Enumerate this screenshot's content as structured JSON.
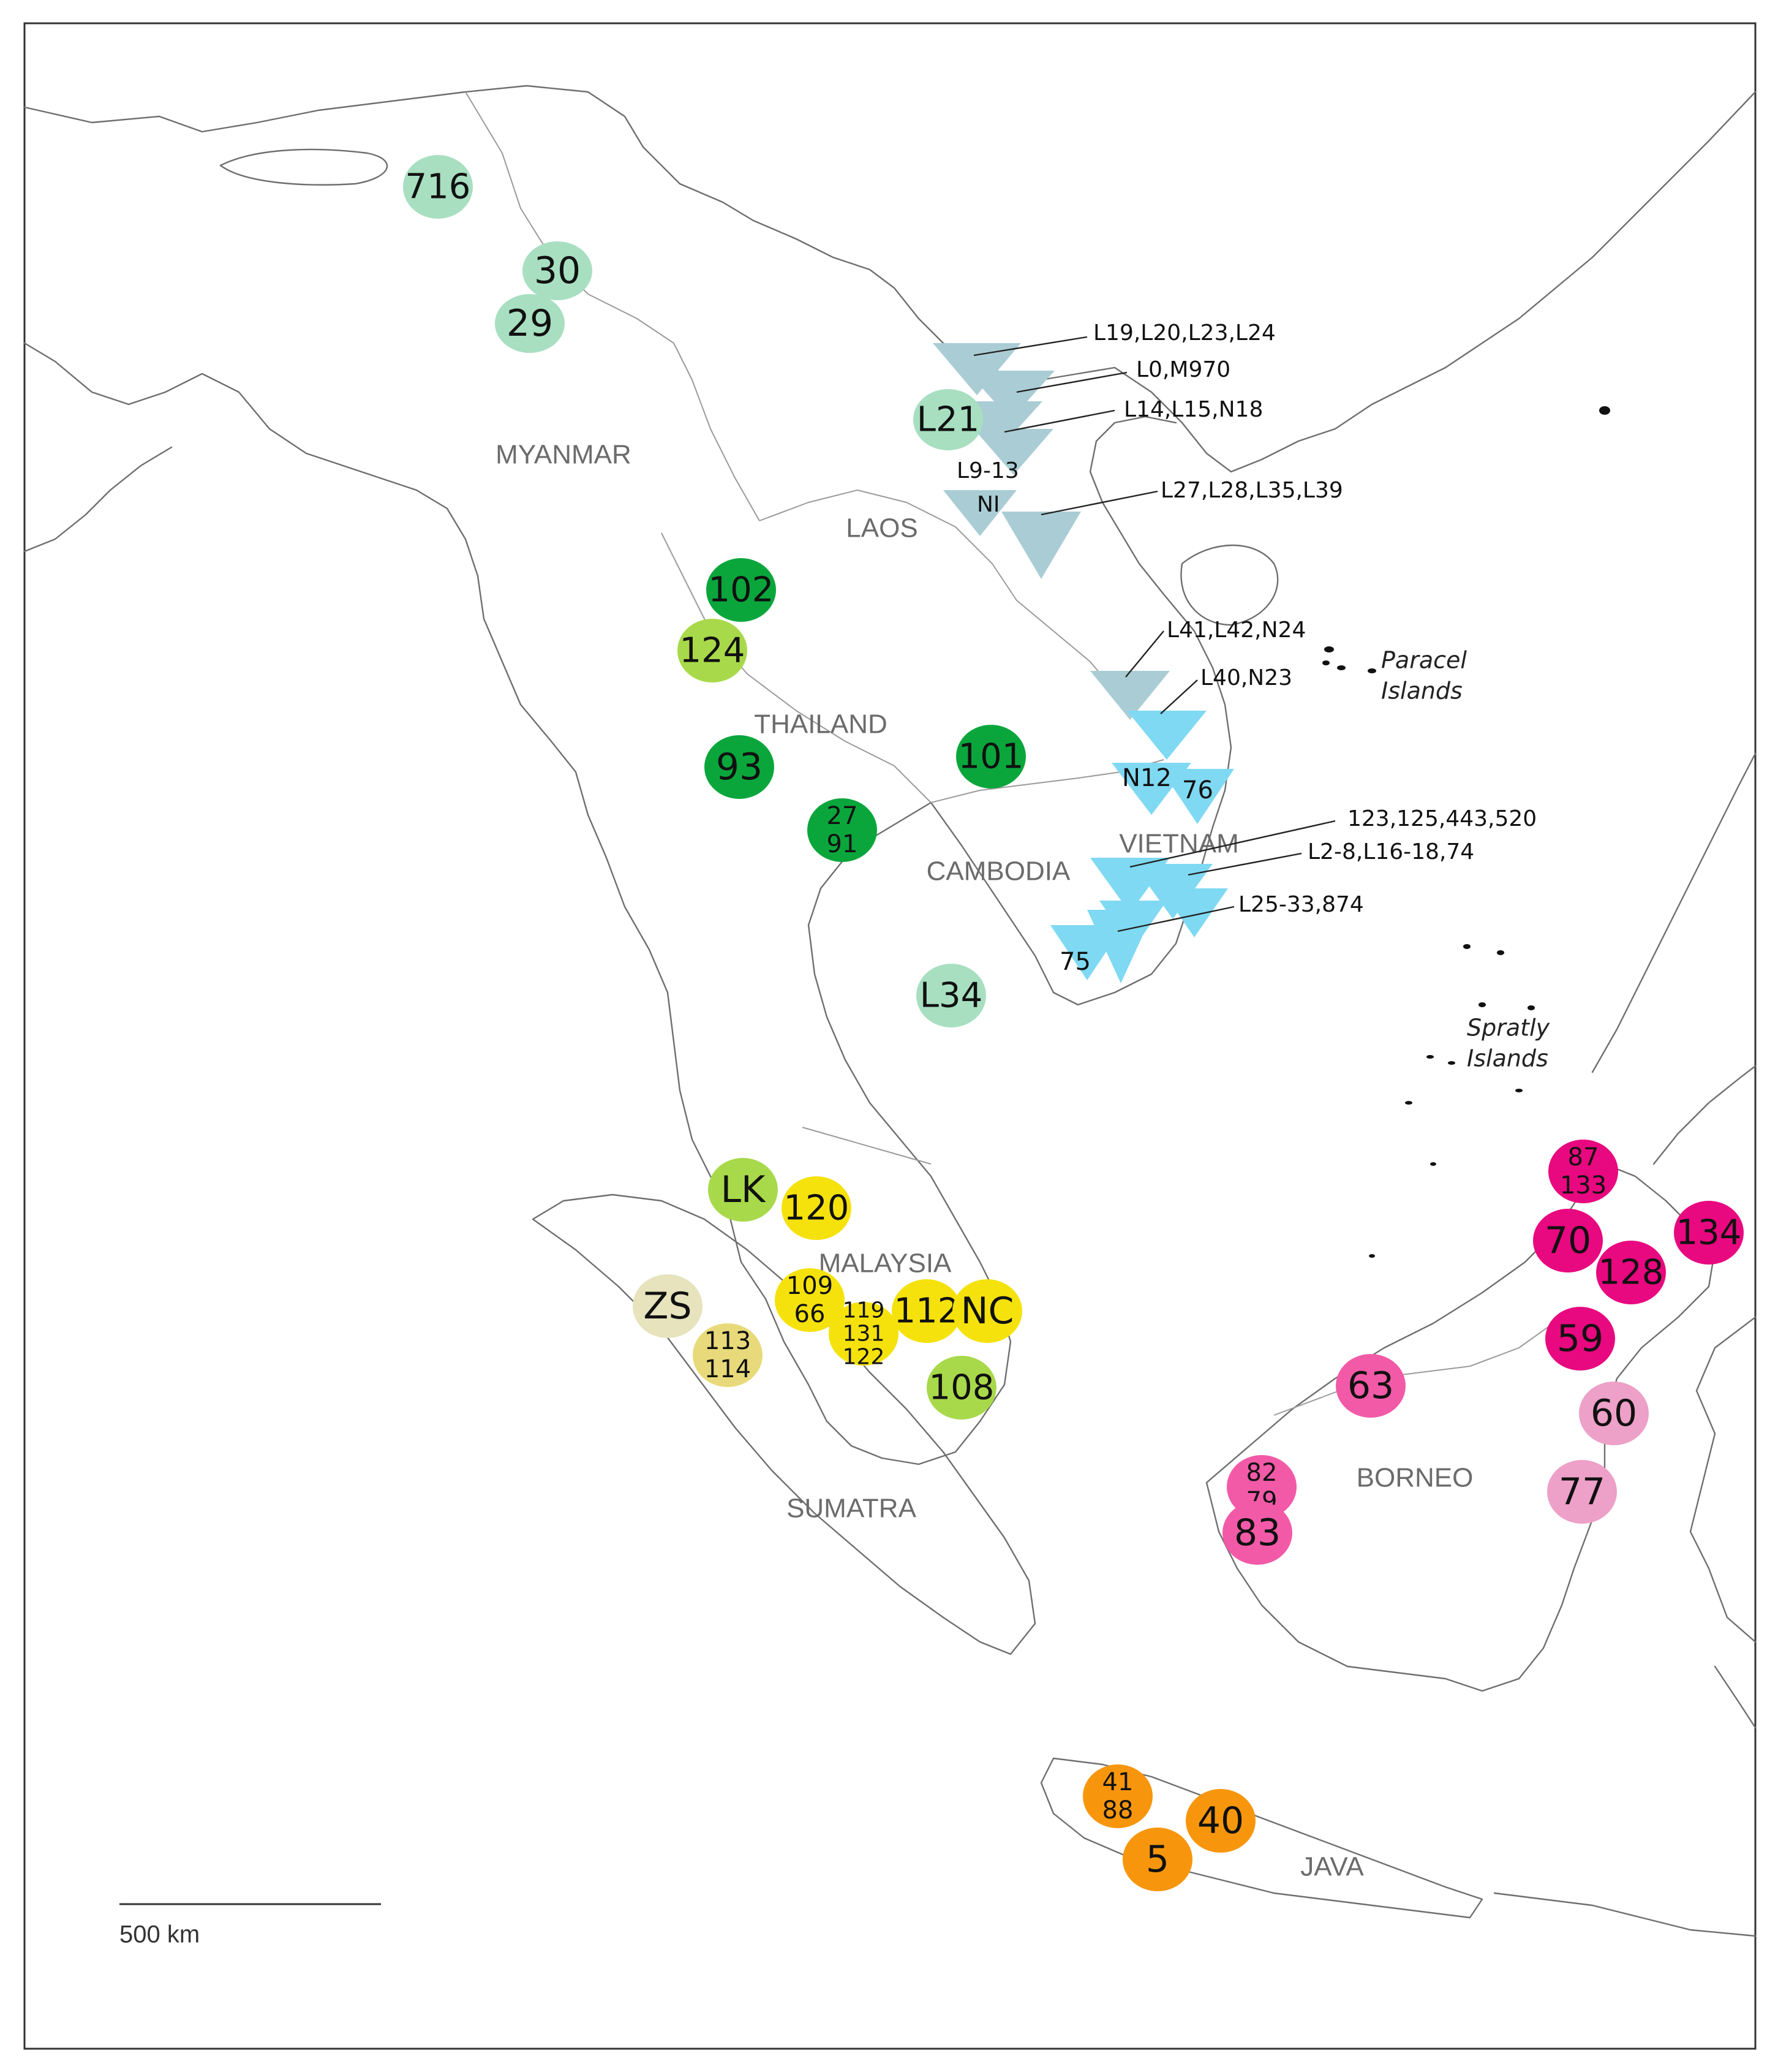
{
  "countries": [
    {
      "id": "myanmar",
      "label": "MYANMAR"
    },
    {
      "id": "laos",
      "label": "LAOS"
    },
    {
      "id": "thailand",
      "label": "THAILAND"
    },
    {
      "id": "cambodia",
      "label": "CAMBODIA"
    },
    {
      "id": "vietnam",
      "label": "VIETNAM"
    },
    {
      "id": "malaysia",
      "label": "MALAYSIA"
    },
    {
      "id": "sumatra",
      "label": "SUMATRA"
    },
    {
      "id": "borneo",
      "label": "BORNEO"
    },
    {
      "id": "java",
      "label": "JAVA"
    }
  ],
  "seas": [
    {
      "id": "paracel",
      "lines": [
        "Paracel",
        "Islands"
      ]
    },
    {
      "id": "spratly",
      "lines": [
        "Spratly",
        "Islands"
      ]
    }
  ],
  "colors": {
    "pale_green": "#a8dfc1",
    "dark_green": "#0aa63c",
    "lime": "#a8d94a",
    "yellow": "#f5e20c",
    "pale_yellow": "#e8da7a",
    "khaki": "#e6e3bd",
    "magenta": "#e8087f",
    "pink": "#f25aa8",
    "light_pink": "#eda0c8",
    "orange": "#f7960d",
    "grey_blue": "#aacdd5",
    "cyan": "#7fd9f2"
  },
  "circles": [
    {
      "id": "716",
      "lines": [
        "716"
      ],
      "color": "pale_green"
    },
    {
      "id": "30",
      "lines": [
        "30"
      ],
      "color": "pale_green"
    },
    {
      "id": "29",
      "lines": [
        "29"
      ],
      "color": "pale_green"
    },
    {
      "id": "L21",
      "lines": [
        "L21"
      ],
      "color": "pale_green"
    },
    {
      "id": "102",
      "lines": [
        "102"
      ],
      "color": "dark_green"
    },
    {
      "id": "124",
      "lines": [
        "124"
      ],
      "color": "lime"
    },
    {
      "id": "93",
      "lines": [
        "93"
      ],
      "color": "dark_green"
    },
    {
      "id": "101",
      "lines": [
        "101"
      ],
      "color": "dark_green"
    },
    {
      "id": "27-91",
      "lines": [
        "27",
        "91"
      ],
      "color": "dark_green"
    },
    {
      "id": "L34",
      "lines": [
        "L34"
      ],
      "color": "pale_green"
    },
    {
      "id": "LK",
      "lines": [
        "LK"
      ],
      "color": "lime"
    },
    {
      "id": "120",
      "lines": [
        "120"
      ],
      "color": "yellow"
    },
    {
      "id": "ZS",
      "lines": [
        "ZS"
      ],
      "color": "khaki"
    },
    {
      "id": "113-114",
      "lines": [
        "113",
        "114"
      ],
      "color": "pale_yellow"
    },
    {
      "id": "109-66",
      "lines": [
        "109",
        "66"
      ],
      "color": "yellow"
    },
    {
      "id": "119-131-122",
      "lines": [
        "119",
        "131",
        "122"
      ],
      "color": "yellow"
    },
    {
      "id": "112",
      "lines": [
        "112"
      ],
      "color": "yellow"
    },
    {
      "id": "NC",
      "lines": [
        "NC"
      ],
      "color": "yellow"
    },
    {
      "id": "108",
      "lines": [
        "108"
      ],
      "color": "lime"
    },
    {
      "id": "87-133",
      "lines": [
        "87",
        "133"
      ],
      "color": "magenta"
    },
    {
      "id": "134",
      "lines": [
        "134"
      ],
      "color": "magenta"
    },
    {
      "id": "70",
      "lines": [
        "70"
      ],
      "color": "magenta"
    },
    {
      "id": "128",
      "lines": [
        "128"
      ],
      "color": "magenta"
    },
    {
      "id": "59",
      "lines": [
        "59"
      ],
      "color": "magenta"
    },
    {
      "id": "63",
      "lines": [
        "63"
      ],
      "color": "pink"
    },
    {
      "id": "60",
      "lines": [
        "60"
      ],
      "color": "light_pink"
    },
    {
      "id": "82-79",
      "lines": [
        "82",
        "79"
      ],
      "color": "pink"
    },
    {
      "id": "83",
      "lines": [
        "83"
      ],
      "color": "pink"
    },
    {
      "id": "77",
      "lines": [
        "77"
      ],
      "color": "light_pink"
    },
    {
      "id": "41-88",
      "lines": [
        "41",
        "88"
      ],
      "color": "orange"
    },
    {
      "id": "40",
      "lines": [
        "40"
      ],
      "color": "orange"
    },
    {
      "id": "5",
      "lines": [
        "5"
      ],
      "color": "orange"
    }
  ],
  "triangle_labels": {
    "l9_13": "L9-13",
    "ni": "NI",
    "n12": "N12",
    "t76": "76",
    "t75": "75"
  },
  "callouts": [
    {
      "id": "c1",
      "text": "L19,L20,L23,L24"
    },
    {
      "id": "c2",
      "text": "L0,M970"
    },
    {
      "id": "c3",
      "text": "L14,L15,N18"
    },
    {
      "id": "c4",
      "text": "L27,L28,L35,L39"
    },
    {
      "id": "c5",
      "text": "L41,L42,N24"
    },
    {
      "id": "c6",
      "text": "L40,N23"
    },
    {
      "id": "c7",
      "text": "123,125,443,520"
    },
    {
      "id": "c8",
      "text": "L2-8,L16-18,74"
    },
    {
      "id": "c9",
      "text": "L25-33,874"
    }
  ],
  "scale": {
    "label": "500 km"
  }
}
